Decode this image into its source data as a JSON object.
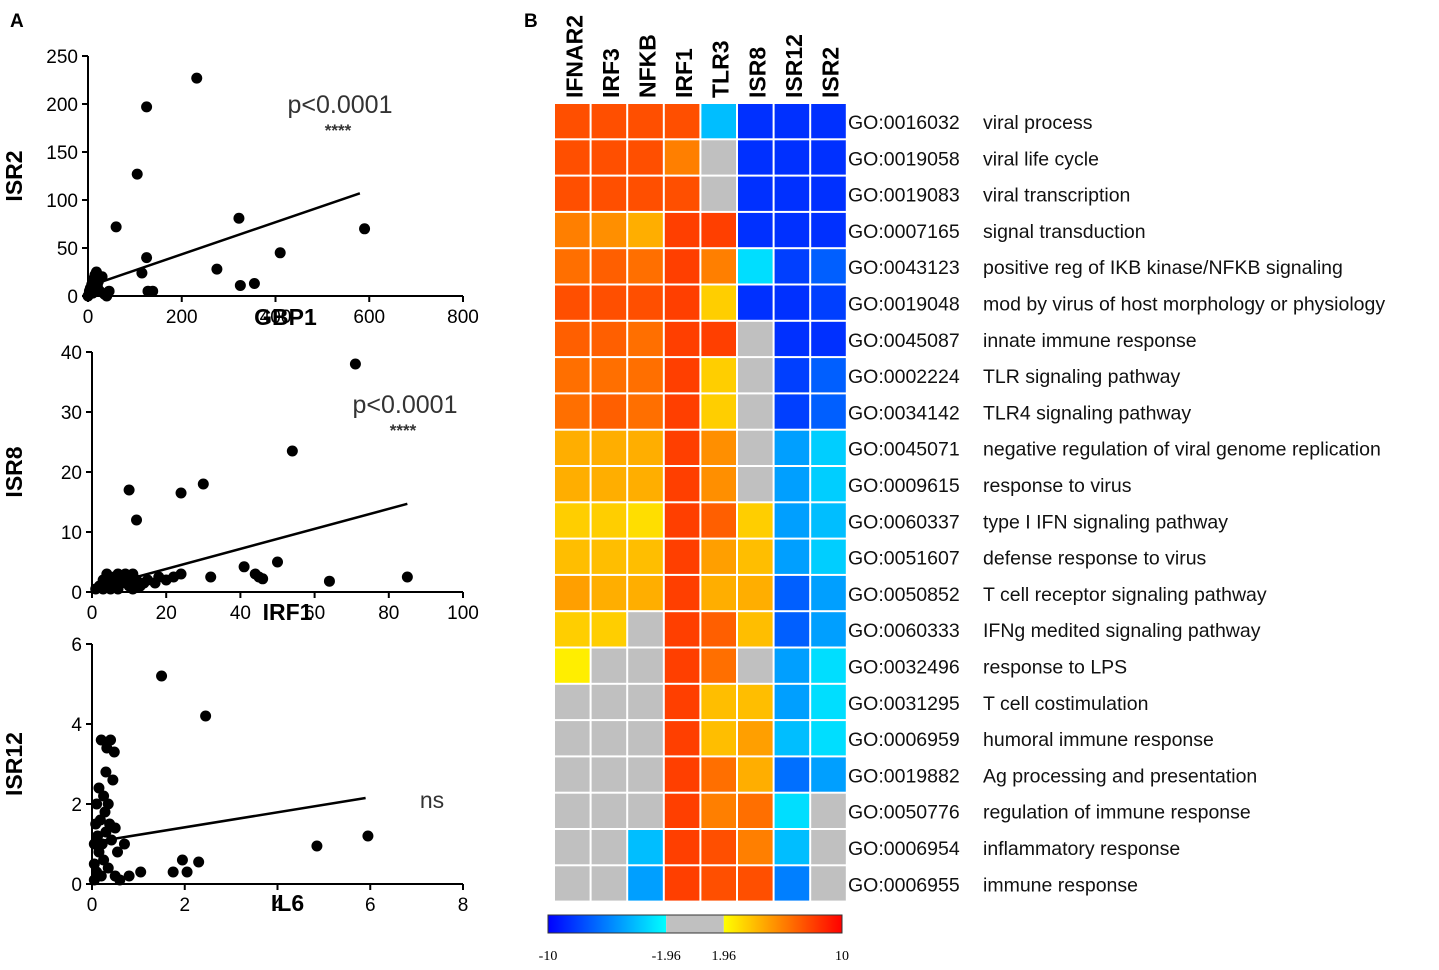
{
  "panels": {
    "a_label": "A",
    "b_label": "B"
  },
  "chart_data": [
    {
      "type": "scatter",
      "panel": "A",
      "xlabel": "GBP1",
      "ylabel": "ISR2",
      "xlim": [
        0,
        800
      ],
      "ylim": [
        0,
        250
      ],
      "xticks": [
        0,
        200,
        400,
        600,
        800
      ],
      "yticks": [
        0,
        50,
        100,
        150,
        200,
        250
      ],
      "annotation": "p<0.0001",
      "significance": "****",
      "trendline": [
        [
          0,
          10
        ],
        [
          580,
          107
        ]
      ],
      "points": [
        [
          0,
          0
        ],
        [
          3,
          5
        ],
        [
          5,
          8
        ],
        [
          8,
          12
        ],
        [
          10,
          3
        ],
        [
          12,
          18
        ],
        [
          15,
          22
        ],
        [
          18,
          25
        ],
        [
          20,
          10
        ],
        [
          22,
          15
        ],
        [
          25,
          5
        ],
        [
          30,
          20
        ],
        [
          35,
          2
        ],
        [
          40,
          0
        ],
        [
          45,
          5
        ],
        [
          60,
          72
        ],
        [
          105,
          127
        ],
        [
          125,
          197
        ],
        [
          115,
          24
        ],
        [
          125,
          40
        ],
        [
          128,
          5
        ],
        [
          138,
          5
        ],
        [
          232,
          227
        ],
        [
          275,
          28
        ],
        [
          322,
          81
        ],
        [
          325,
          11
        ],
        [
          355,
          13
        ],
        [
          410,
          45
        ],
        [
          590,
          70
        ]
      ]
    },
    {
      "type": "scatter",
      "panel": "A",
      "xlabel": "IRF1",
      "ylabel": "ISR8",
      "xlim": [
        0,
        100
      ],
      "ylim": [
        0,
        40
      ],
      "xticks": [
        0,
        20,
        40,
        60,
        80,
        100
      ],
      "yticks": [
        0,
        10,
        20,
        30,
        40
      ],
      "annotation": "p<0.0001",
      "significance": "****",
      "trendline": [
        [
          0,
          0.5
        ],
        [
          85,
          14.7
        ]
      ],
      "points": [
        [
          1,
          0.5
        ],
        [
          2,
          1
        ],
        [
          3,
          0.5
        ],
        [
          3,
          2
        ],
        [
          4,
          1.5
        ],
        [
          4,
          3
        ],
        [
          5,
          0.5
        ],
        [
          5,
          2
        ],
        [
          6,
          1
        ],
        [
          6,
          2.5
        ],
        [
          7,
          0.5
        ],
        [
          7,
          3
        ],
        [
          8,
          1.5
        ],
        [
          8,
          2
        ],
        [
          9,
          2.5
        ],
        [
          9,
          3
        ],
        [
          10,
          1
        ],
        [
          10,
          2
        ],
        [
          11,
          0.5
        ],
        [
          11,
          3
        ],
        [
          12,
          2
        ],
        [
          13,
          1
        ],
        [
          14,
          1.5
        ],
        [
          15,
          2
        ],
        [
          17,
          1.5
        ],
        [
          18,
          2.5
        ],
        [
          20,
          2
        ],
        [
          22,
          2.5
        ],
        [
          24,
          3
        ],
        [
          10,
          17
        ],
        [
          12,
          12
        ],
        [
          24,
          16.5
        ],
        [
          30,
          18
        ],
        [
          32,
          2.5
        ],
        [
          41,
          4.2
        ],
        [
          44,
          3
        ],
        [
          45,
          2.5
        ],
        [
          46,
          2.2
        ],
        [
          50,
          5
        ],
        [
          54,
          23.5
        ],
        [
          64,
          1.8
        ],
        [
          71,
          38
        ],
        [
          85,
          2.5
        ]
      ]
    },
    {
      "type": "scatter",
      "panel": "A",
      "xlabel": "IL6",
      "ylabel": "ISR12",
      "xlim": [
        0,
        8
      ],
      "ylim": [
        0,
        6
      ],
      "xticks": [
        0,
        2,
        4,
        6,
        8
      ],
      "yticks": [
        0,
        2,
        4,
        6
      ],
      "annotation": "ns",
      "trendline": [
        [
          0.05,
          1.05
        ],
        [
          5.9,
          2.15
        ]
      ],
      "points": [
        [
          0.05,
          0.1
        ],
        [
          0.05,
          0.5
        ],
        [
          0.05,
          1.0
        ],
        [
          0.08,
          1.5
        ],
        [
          0.1,
          0.3
        ],
        [
          0.1,
          2.0
        ],
        [
          0.12,
          1.2
        ],
        [
          0.15,
          0.8
        ],
        [
          0.15,
          2.4
        ],
        [
          0.18,
          1.6
        ],
        [
          0.2,
          0.2
        ],
        [
          0.2,
          3.6
        ],
        [
          0.22,
          1.0
        ],
        [
          0.25,
          2.2
        ],
        [
          0.25,
          0.6
        ],
        [
          0.28,
          1.8
        ],
        [
          0.3,
          2.8
        ],
        [
          0.3,
          1.3
        ],
        [
          0.32,
          3.4
        ],
        [
          0.35,
          0.4
        ],
        [
          0.35,
          2.0
        ],
        [
          0.38,
          1.5
        ],
        [
          0.4,
          3.6
        ],
        [
          0.42,
          1.1
        ],
        [
          0.45,
          2.6
        ],
        [
          0.48,
          3.3
        ],
        [
          0.5,
          0.2
        ],
        [
          0.5,
          1.4
        ],
        [
          0.55,
          0.8
        ],
        [
          0.6,
          0.1
        ],
        [
          0.7,
          1.0
        ],
        [
          0.8,
          0.2
        ],
        [
          1.05,
          0.3
        ],
        [
          1.5,
          5.2
        ],
        [
          1.75,
          0.3
        ],
        [
          1.95,
          0.6
        ],
        [
          2.05,
          0.3
        ],
        [
          2.3,
          0.55
        ],
        [
          2.45,
          4.2
        ],
        [
          4.85,
          0.95
        ],
        [
          5.95,
          1.2
        ]
      ]
    },
    {
      "type": "heatmap",
      "panel": "B",
      "columns": [
        "IFNAR2",
        "IRF3",
        "NFKB",
        "IRF1",
        "TLR3",
        "ISR8",
        "ISR12",
        "ISR2"
      ],
      "rows": [
        {
          "go": "GO:0016032",
          "term": "viral process",
          "values": [
            7.5,
            7.5,
            7.5,
            7.5,
            -4,
            -8.5,
            -8.5,
            -8.5
          ]
        },
        {
          "go": "GO:0019058",
          "term": "viral life cycle",
          "values": [
            7.5,
            7.5,
            7.5,
            6,
            null,
            -8.5,
            -8.5,
            -8.5
          ]
        },
        {
          "go": "GO:0019083",
          "term": "viral transcription",
          "values": [
            7.5,
            7.5,
            7.5,
            7.5,
            null,
            -8.5,
            -8.5,
            -8.5
          ]
        },
        {
          "go": "GO:0007165",
          "term": "signal transduction",
          "values": [
            6,
            5.5,
            4.5,
            8,
            8,
            -8.5,
            -8.5,
            -8.5
          ]
        },
        {
          "go": "GO:0043123",
          "term": "positive reg of IKB kinase/NFKB signaling",
          "values": [
            6.5,
            7,
            6.5,
            8,
            6,
            -3,
            -8,
            -7
          ]
        },
        {
          "go": "GO:0019048",
          "term": "mod by virus of host morphology or physiology",
          "values": [
            7.5,
            7.5,
            7.5,
            8,
            3.5,
            -8.5,
            -8.5,
            -8
          ]
        },
        {
          "go": "GO:0045087",
          "term": "innate immune response",
          "values": [
            7,
            7,
            6.5,
            8,
            8,
            null,
            -8.5,
            -8.5
          ]
        },
        {
          "go": "GO:0002224",
          "term": "TLR signaling pathway",
          "values": [
            6.5,
            6.5,
            6.5,
            8,
            3.5,
            null,
            -8,
            -7
          ]
        },
        {
          "go": "GO:0034142",
          "term": "TLR4 signaling pathway",
          "values": [
            6.5,
            7,
            6.5,
            8,
            3.5,
            null,
            -8,
            -7
          ]
        },
        {
          "go": "GO:0045071",
          "term": "negative regulation of viral genome replication",
          "values": [
            4.5,
            4.5,
            4.5,
            8,
            5.5,
            null,
            -5,
            -3.5
          ]
        },
        {
          "go": "GO:0009615",
          "term": "response to virus",
          "values": [
            4.5,
            4.5,
            4.5,
            8,
            5.5,
            null,
            -5,
            -3.5
          ]
        },
        {
          "go": "GO:0060337",
          "term": "type I IFN signaling pathway",
          "values": [
            3.5,
            3.5,
            3,
            8,
            7,
            3.5,
            -5,
            -4
          ]
        },
        {
          "go": "GO:0051607",
          "term": "defense response to virus",
          "values": [
            4,
            4,
            4,
            8,
            5,
            4,
            -5,
            -3.5
          ]
        },
        {
          "go": "GO:0050852",
          "term": "T cell receptor signaling pathway",
          "values": [
            5,
            4.5,
            4.5,
            8,
            4.5,
            4.5,
            -7,
            -5
          ]
        },
        {
          "go": "GO:0060333",
          "term": "IFNg medited signaling pathway",
          "values": [
            3.5,
            3.5,
            null,
            8,
            7,
            4,
            -7,
            -5
          ]
        },
        {
          "go": "GO:0032496",
          "term": "response to LPS",
          "values": [
            2.5,
            null,
            null,
            8,
            6.5,
            null,
            -5,
            -3
          ]
        },
        {
          "go": "GO:0031295",
          "term": "T cell costimulation",
          "values": [
            null,
            null,
            null,
            8,
            4,
            4,
            -5,
            -3
          ]
        },
        {
          "go": "GO:0006959",
          "term": "humoral immune response",
          "values": [
            null,
            null,
            null,
            8,
            4,
            5,
            -4,
            -3
          ]
        },
        {
          "go": "GO:0019882",
          "term": "Ag processing and presentation",
          "values": [
            null,
            null,
            null,
            8,
            6.5,
            4.5,
            -6.5,
            -5
          ]
        },
        {
          "go": "GO:0050776",
          "term": "regulation of immune response",
          "values": [
            null,
            null,
            null,
            8,
            6,
            6.5,
            -3,
            null
          ]
        },
        {
          "go": "GO:0006954",
          "term": "inflammatory response",
          "values": [
            null,
            null,
            -4,
            8,
            7.5,
            6,
            -4,
            null
          ]
        },
        {
          "go": "GO:0006955",
          "term": "immune response",
          "values": [
            null,
            null,
            -5,
            8,
            7.5,
            7.5,
            -6,
            null
          ]
        }
      ],
      "colorbar": {
        "tick_labels": [
          "-10",
          "-1.96",
          "1.96",
          "10"
        ],
        "range": [
          -10,
          10
        ],
        "gray_band": [
          -1.96,
          1.96
        ]
      },
      "colors": {
        "negative": [
          "#0000ff",
          "#00ffff"
        ],
        "gray": "#c0c0c0",
        "positive": [
          "#ffff00",
          "#ff0000"
        ]
      }
    }
  ]
}
